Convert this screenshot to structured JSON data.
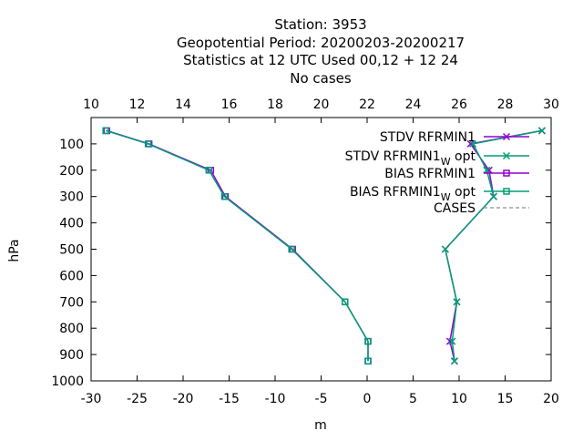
{
  "title_lines": [
    "Station:     3953",
    "Geopotential  Period: 20200203-20200217",
    "Statistics at 12 UTC  Used  00,12  + 12 24",
    "No cases"
  ],
  "chart_data": {
    "type": "line",
    "xlabel": "m",
    "ylabel": "hPa",
    "xlim": [
      -30,
      20
    ],
    "x_ticks": [
      -30,
      -25,
      -20,
      -15,
      -10,
      -5,
      0,
      5,
      10,
      15,
      20
    ],
    "x2lim": [
      10,
      30
    ],
    "x2_ticks": [
      10,
      12,
      14,
      16,
      18,
      20,
      22,
      24,
      26,
      28,
      30
    ],
    "ylim": [
      1000,
      0
    ],
    "y_ticks": [
      100,
      200,
      300,
      400,
      500,
      600,
      700,
      800,
      900,
      1000
    ],
    "levels": [
      50,
      100,
      200,
      300,
      500,
      700,
      850,
      925
    ],
    "legend_position": "top-right",
    "grid": false,
    "series": [
      {
        "name": "STDV RFRMIN1",
        "axis": "top",
        "marker": "x",
        "color": "#9400d3",
        "values": [
          29.6,
          26.5,
          27.3,
          27.5,
          25.4,
          25.9,
          25.6,
          25.8
        ]
      },
      {
        "name": "STDV RFRMIN1",
        "subscript": "W",
        "name_suffix": " opt",
        "axis": "top",
        "marker": "x",
        "color": "#009e73",
        "values": [
          29.6,
          26.6,
          27.2,
          27.5,
          25.4,
          25.9,
          25.7,
          25.8
        ]
      },
      {
        "name": "BIAS RFRMIN1",
        "axis": "bottom",
        "marker": "square",
        "color": "#9400d3",
        "values": [
          -28.3,
          -23.7,
          -17.0,
          -15.4,
          -8.1,
          -2.4,
          0.1,
          0.1
        ]
      },
      {
        "name": "BIAS RFRMIN1",
        "subscript": "W",
        "name_suffix": " opt",
        "axis": "bottom",
        "marker": "square",
        "color": "#009e73",
        "values": [
          -28.4,
          -23.8,
          -17.2,
          -15.5,
          -8.2,
          -2.4,
          0.1,
          0.1
        ]
      },
      {
        "name": "CASES",
        "axis": "bottom",
        "marker": "none",
        "color": "#a0a0a0",
        "dashed": true,
        "values": []
      }
    ]
  }
}
